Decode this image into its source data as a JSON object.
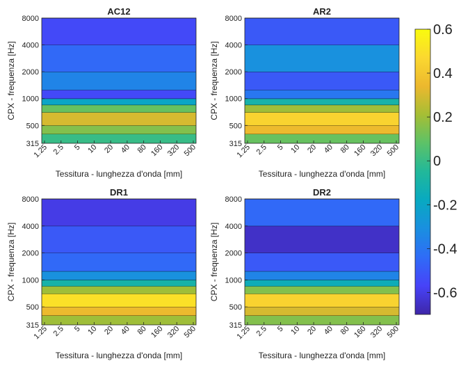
{
  "chart_data": [
    {
      "type": "heatmap",
      "title": "AC12",
      "xlabel": "Tessitura - lunghezza d'onda [mm]",
      "ylabel": "CPX - frequenza [Hz]",
      "x_ticks": [
        "1.25",
        "2.5",
        "5",
        "10",
        "20",
        "40",
        "80",
        "160",
        "320",
        "500"
      ],
      "y_ticks": [
        "315",
        "500",
        "1000",
        "2000",
        "4000",
        "8000"
      ],
      "y_scale": "log",
      "ylim": [
        315,
        8000
      ],
      "bands": [
        {
          "f_low": 315,
          "f_high": 400,
          "value": 0.0
        },
        {
          "f_low": 400,
          "f_high": 500,
          "value": 0.15
        },
        {
          "f_low": 500,
          "f_high": 700,
          "value": 0.3
        },
        {
          "f_low": 700,
          "f_high": 850,
          "value": 0.1
        },
        {
          "f_low": 850,
          "f_high": 1000,
          "value": -0.2
        },
        {
          "f_low": 1000,
          "f_high": 1250,
          "value": -0.55
        },
        {
          "f_low": 1250,
          "f_high": 2000,
          "value": -0.35
        },
        {
          "f_low": 2000,
          "f_high": 4000,
          "value": -0.45
        },
        {
          "f_low": 4000,
          "f_high": 8000,
          "value": -0.55
        }
      ]
    },
    {
      "type": "heatmap",
      "title": "AR2",
      "xlabel": "Tessitura - lunghezza d'onda [mm]",
      "ylabel": "CPX - frequenza [Hz]",
      "x_ticks": [
        "1.25",
        "2.5",
        "5",
        "10",
        "20",
        "40",
        "80",
        "160",
        "320",
        "500"
      ],
      "y_ticks": [
        "315",
        "500",
        "1000",
        "2000",
        "4000",
        "8000"
      ],
      "y_scale": "log",
      "ylim": [
        315,
        8000
      ],
      "bands": [
        {
          "f_low": 315,
          "f_high": 400,
          "value": 0.1
        },
        {
          "f_low": 400,
          "f_high": 500,
          "value": 0.35
        },
        {
          "f_low": 500,
          "f_high": 700,
          "value": 0.45
        },
        {
          "f_low": 700,
          "f_high": 850,
          "value": 0.2
        },
        {
          "f_low": 850,
          "f_high": 1000,
          "value": -0.1
        },
        {
          "f_low": 1000,
          "f_high": 1250,
          "value": -0.4
        },
        {
          "f_low": 1250,
          "f_high": 2000,
          "value": -0.5
        },
        {
          "f_low": 2000,
          "f_high": 4000,
          "value": -0.3
        },
        {
          "f_low": 4000,
          "f_high": 8000,
          "value": -0.5
        }
      ]
    },
    {
      "type": "heatmap",
      "title": "DR1",
      "xlabel": "Tessitura - lunghezza d'onda [mm]",
      "ylabel": "CPX - frequenza [Hz]",
      "x_ticks": [
        "1.25",
        "2.5",
        "5",
        "10",
        "20",
        "40",
        "80",
        "160",
        "320",
        "500"
      ],
      "y_ticks": [
        "315",
        "500",
        "1000",
        "2000",
        "4000",
        "8000"
      ],
      "y_scale": "log",
      "ylim": [
        315,
        8000
      ],
      "bands": [
        {
          "f_low": 315,
          "f_high": 400,
          "value": 0.2
        },
        {
          "f_low": 400,
          "f_high": 500,
          "value": 0.35
        },
        {
          "f_low": 500,
          "f_high": 700,
          "value": 0.5
        },
        {
          "f_low": 700,
          "f_high": 850,
          "value": 0.2
        },
        {
          "f_low": 850,
          "f_high": 1000,
          "value": -0.1
        },
        {
          "f_low": 1000,
          "f_high": 1250,
          "value": -0.3
        },
        {
          "f_low": 1250,
          "f_high": 2000,
          "value": -0.45
        },
        {
          "f_low": 2000,
          "f_high": 4000,
          "value": -0.5
        },
        {
          "f_low": 4000,
          "f_high": 8000,
          "value": -0.6
        }
      ]
    },
    {
      "type": "heatmap",
      "title": "DR2",
      "xlabel": "Tessitura - lunghezza d'onda [mm]",
      "ylabel": "CPX - frequenza [Hz]",
      "x_ticks": [
        "1.25",
        "2.5",
        "5",
        "10",
        "20",
        "40",
        "80",
        "160",
        "320",
        "500"
      ],
      "y_ticks": [
        "315",
        "500",
        "1000",
        "2000",
        "4000",
        "8000"
      ],
      "y_scale": "log",
      "ylim": [
        315,
        8000
      ],
      "bands": [
        {
          "f_low": 315,
          "f_high": 400,
          "value": 0.15
        },
        {
          "f_low": 400,
          "f_high": 500,
          "value": 0.3
        },
        {
          "f_low": 500,
          "f_high": 700,
          "value": 0.45
        },
        {
          "f_low": 700,
          "f_high": 850,
          "value": 0.15
        },
        {
          "f_low": 850,
          "f_high": 1000,
          "value": -0.15
        },
        {
          "f_low": 1000,
          "f_high": 1250,
          "value": -0.35
        },
        {
          "f_low": 1250,
          "f_high": 2000,
          "value": -0.5
        },
        {
          "f_low": 2000,
          "f_high": 4000,
          "value": -0.65
        },
        {
          "f_low": 4000,
          "f_high": 8000,
          "value": -0.45
        }
      ]
    }
  ],
  "colorbar": {
    "ticks": [
      "0.6",
      "0.4",
      "0.2",
      "0",
      "-0.2",
      "-0.4",
      "-0.6"
    ],
    "range": [
      -0.7,
      0.6
    ],
    "colormap": [
      "#3e26a8",
      "#4743f8",
      "#2f6cf7",
      "#1a8fe0",
      "#08a9c1",
      "#21b89a",
      "#5cc268",
      "#a5be35",
      "#ecb82e",
      "#fbd830",
      "#f9fb0e"
    ]
  }
}
